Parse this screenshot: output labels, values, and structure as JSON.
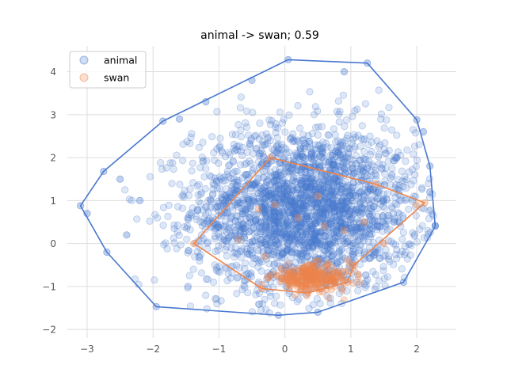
{
  "chart_data": {
    "type": "scatter",
    "title": "animal -> swan; 0.59",
    "xlabel": "",
    "ylabel": "",
    "xlim": [
      -3.3,
      2.6
    ],
    "ylim": [
      -2.2,
      4.6
    ],
    "xticks": [
      -3,
      -2,
      -1,
      0,
      1,
      2
    ],
    "yticks": [
      -2,
      -1,
      0,
      1,
      2,
      3,
      4
    ],
    "grid": true,
    "legend_placement": "top-left",
    "series": [
      {
        "name": "animal",
        "color": "#4878cf",
        "distribution": {
          "center": [
            0.3,
            0.8
          ],
          "spread": [
            0.85,
            0.95
          ],
          "count": 2600
        },
        "hull": [
          [
            -3.1,
            0.88
          ],
          [
            -2.75,
            1.68
          ],
          [
            -1.85,
            2.85
          ],
          [
            0.05,
            4.28
          ],
          [
            1.25,
            4.2
          ],
          [
            2.0,
            2.88
          ],
          [
            2.2,
            1.8
          ],
          [
            2.28,
            0.4
          ],
          [
            1.8,
            -0.9
          ],
          [
            0.5,
            -1.6
          ],
          [
            -0.1,
            -1.67
          ],
          [
            -1.95,
            -1.47
          ],
          [
            -2.7,
            -0.2
          ]
        ],
        "outliers": [
          [
            0.9,
            4.0
          ],
          [
            -1.2,
            3.3
          ],
          [
            2.1,
            2.6
          ],
          [
            -2.5,
            1.5
          ],
          [
            -3.0,
            0.7
          ],
          [
            -2.4,
            0.2
          ],
          [
            -0.5,
            3.8
          ],
          [
            2.2,
            1.2
          ],
          [
            2.28,
            0.42
          ],
          [
            -1.6,
            2.9
          ],
          [
            1.7,
            2.0
          ],
          [
            -2.2,
            1.0
          ]
        ]
      },
      {
        "name": "swan",
        "color": "#ee854a",
        "distribution": {
          "center": [
            0.4,
            -0.8
          ],
          "spread": [
            0.3,
            0.15
          ],
          "count": 260
        },
        "hull": [
          [
            -1.38,
            0.0
          ],
          [
            -0.22,
            2.0
          ],
          [
            1.38,
            1.38
          ],
          [
            2.12,
            0.95
          ],
          [
            1.05,
            -0.5
          ],
          [
            0.95,
            -0.9
          ],
          [
            0.35,
            -1.15
          ],
          [
            -0.35,
            -1.05
          ]
        ],
        "outliers": [
          [
            -0.4,
            0.8
          ],
          [
            0.5,
            1.1
          ],
          [
            -0.15,
            0.9
          ],
          [
            1.2,
            0.5
          ],
          [
            -0.7,
            0.1
          ],
          [
            0.9,
            0.3
          ],
          [
            1.5,
            0.0
          ],
          [
            -0.3,
            -0.3
          ],
          [
            0.2,
            0.6
          ],
          [
            2.0,
            0.9
          ],
          [
            0.6,
            0.4
          ]
        ]
      }
    ]
  }
}
